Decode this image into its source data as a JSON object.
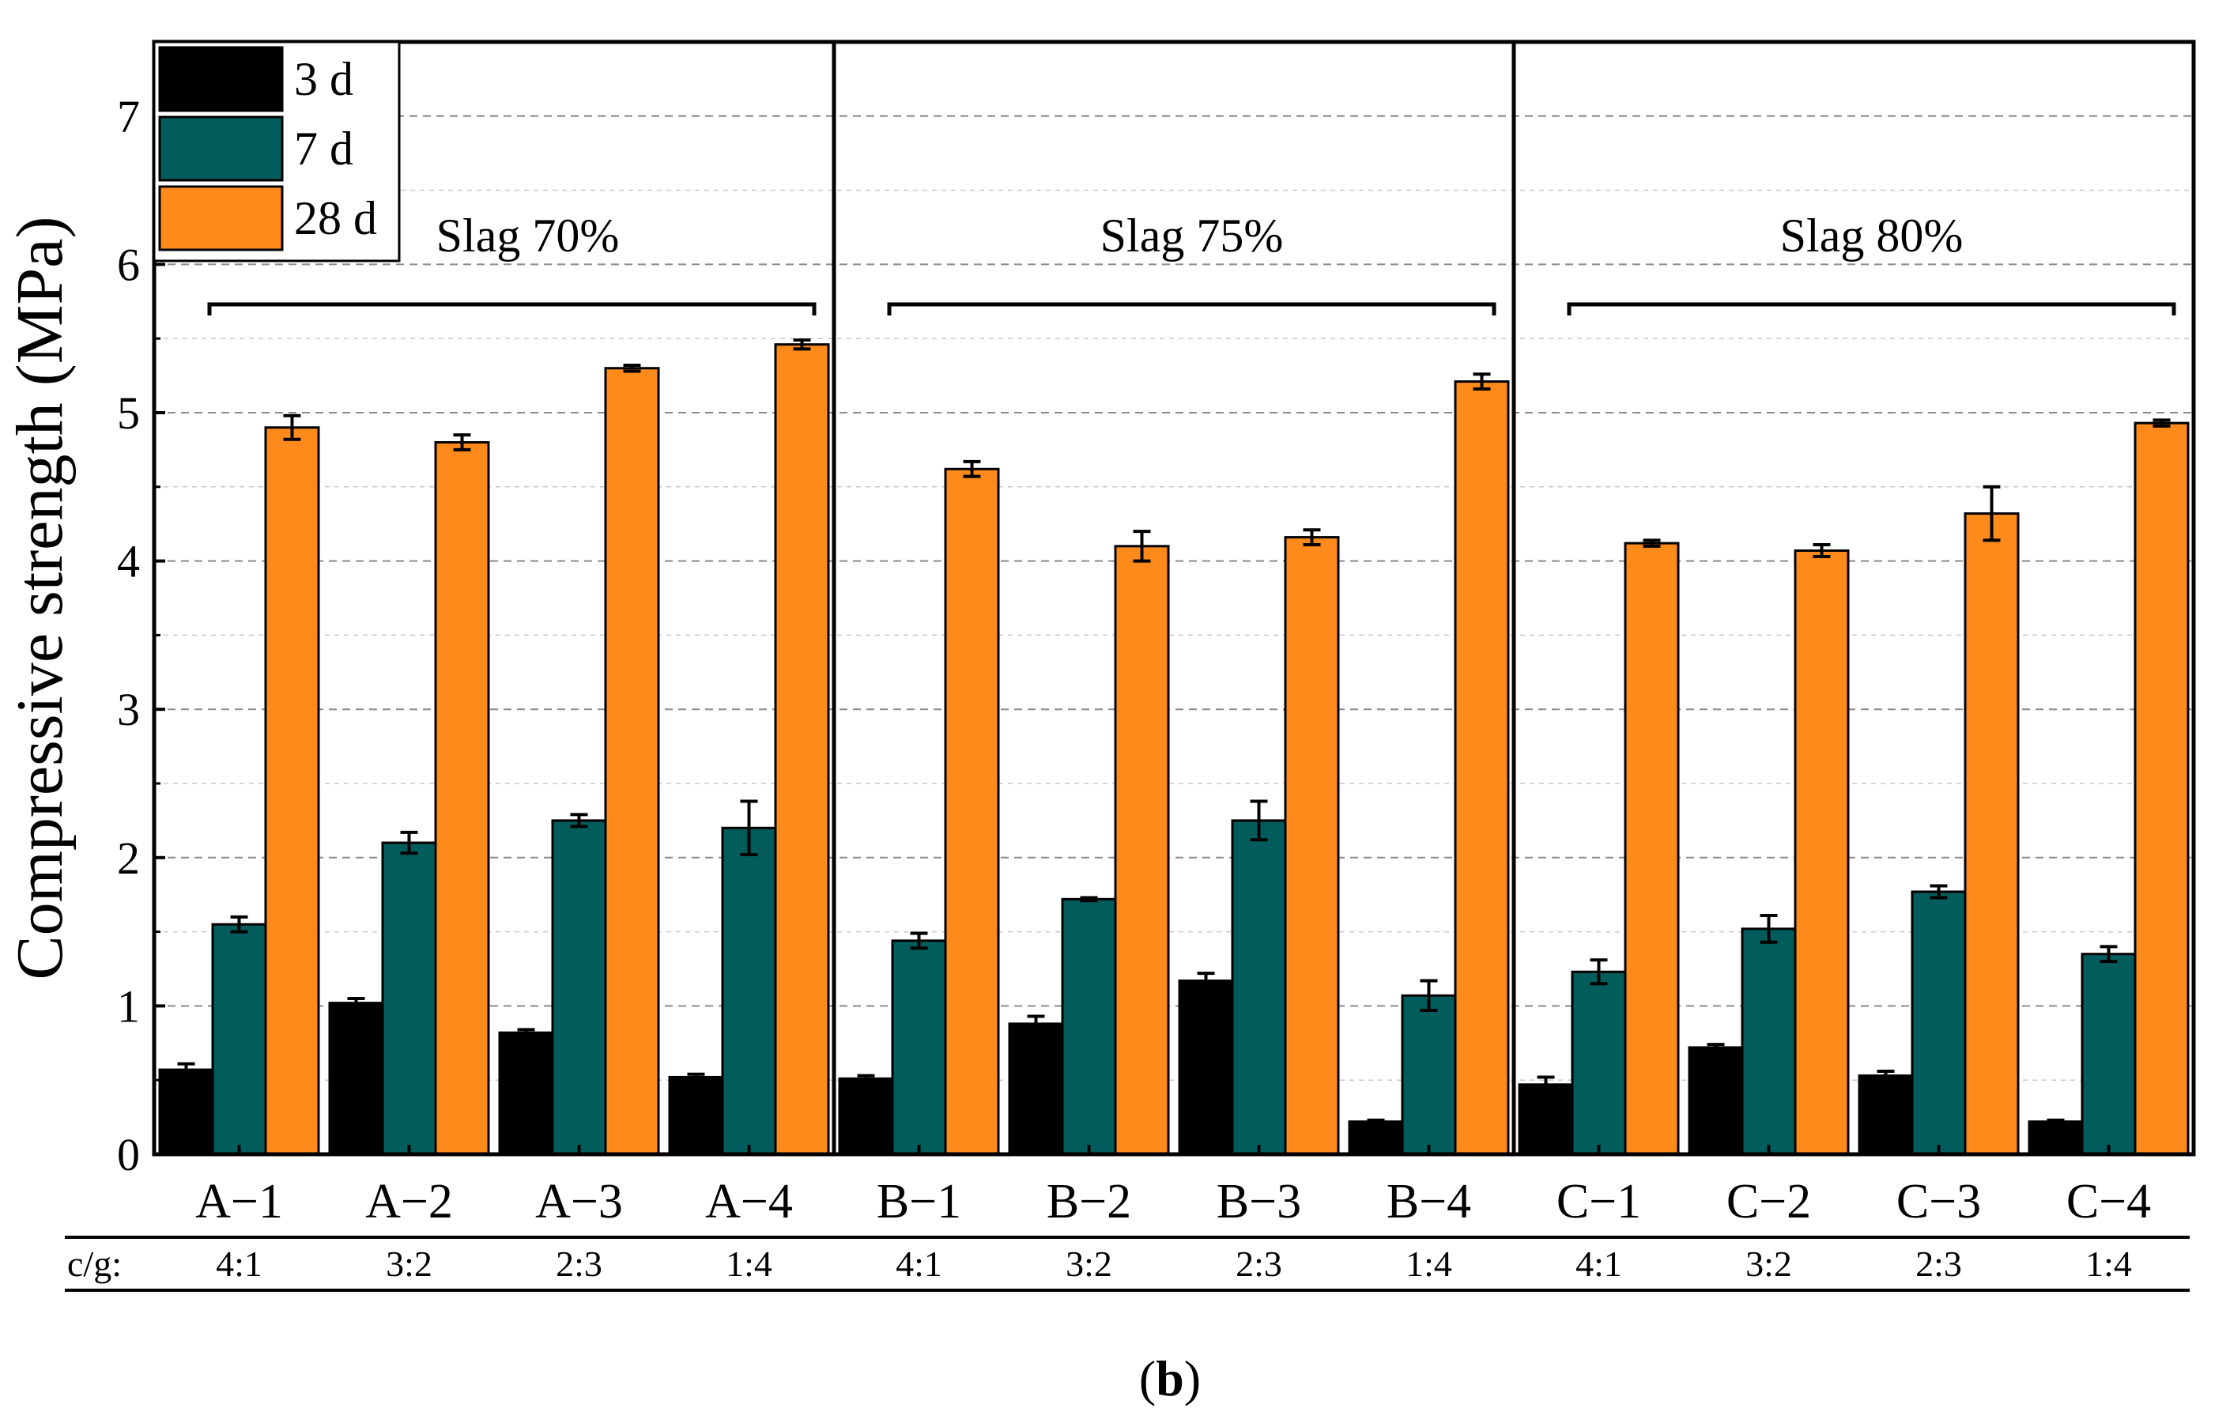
{
  "chart_data": {
    "type": "bar",
    "ylabel": "Compressive strength (MPa)",
    "ylim": [
      0,
      7.5
    ],
    "yticks": [
      0,
      1,
      2,
      3,
      4,
      5,
      6,
      7
    ],
    "grid": true,
    "legend_position": "top-left",
    "categories": [
      "A−1",
      "A−2",
      "A−3",
      "A−4",
      "B−1",
      "B−2",
      "B−3",
      "B−4",
      "C−1",
      "C−2",
      "C−3",
      "C−4"
    ],
    "ratio_label": "c/g:",
    "ratios": [
      "4:1",
      "3:2",
      "2:3",
      "1:4",
      "4:1",
      "3:2",
      "2:3",
      "1:4",
      "4:1",
      "3:2",
      "2:3",
      "1:4"
    ],
    "groups": [
      {
        "label": "Slag 70%",
        "start": 0,
        "end": 3
      },
      {
        "label": "Slag 75%",
        "start": 4,
        "end": 7
      },
      {
        "label": "Slag 80%",
        "start": 8,
        "end": 11
      }
    ],
    "series": [
      {
        "name": "3 d",
        "color": "#000000",
        "values": [
          0.57,
          1.02,
          0.82,
          0.52,
          0.51,
          0.88,
          1.17,
          0.22,
          0.47,
          0.72,
          0.53,
          0.22
        ],
        "errors": [
          0.04,
          0.03,
          0.02,
          0.02,
          0.02,
          0.05,
          0.05,
          0.01,
          0.05,
          0.02,
          0.03,
          0.01
        ]
      },
      {
        "name": "7 d",
        "color": "#035c5c",
        "values": [
          1.55,
          2.1,
          2.25,
          2.2,
          1.44,
          1.72,
          2.25,
          1.07,
          1.23,
          1.52,
          1.77,
          1.35
        ],
        "errors": [
          0.05,
          0.07,
          0.04,
          0.18,
          0.05,
          0.01,
          0.13,
          0.1,
          0.08,
          0.09,
          0.04,
          0.05
        ]
      },
      {
        "name": "28 d",
        "color": "#fd8a1a",
        "values": [
          4.9,
          4.8,
          5.3,
          5.46,
          4.62,
          4.1,
          4.16,
          5.21,
          4.12,
          4.07,
          4.32,
          4.93
        ],
        "errors": [
          0.08,
          0.05,
          0.02,
          0.03,
          0.05,
          0.1,
          0.05,
          0.05,
          0.02,
          0.04,
          0.18,
          0.02
        ]
      }
    ],
    "caption": "b"
  }
}
